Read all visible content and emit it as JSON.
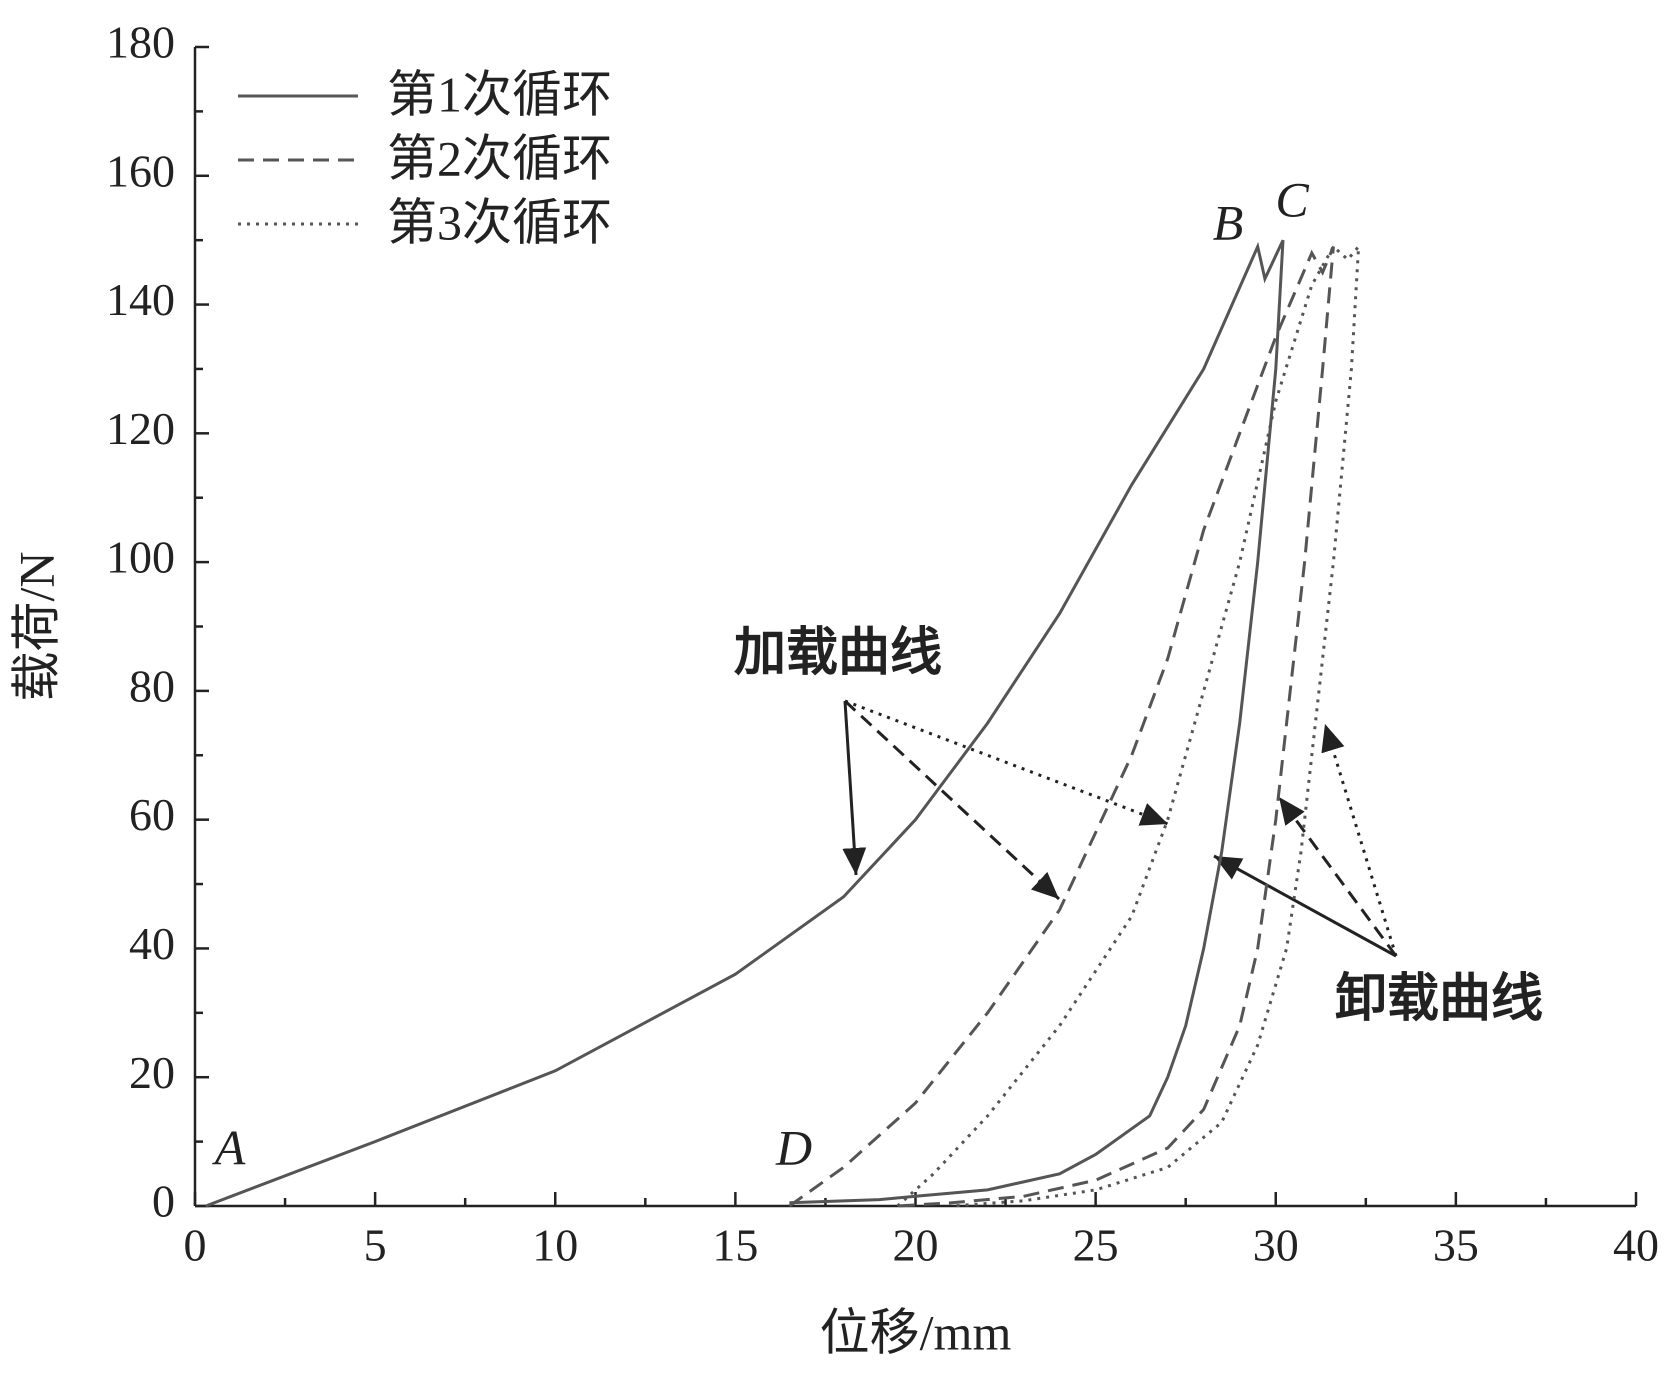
{
  "chart_data": {
    "type": "line",
    "xlabel": "位移/mm",
    "ylabel": "载荷/N",
    "xlim": [
      0,
      40
    ],
    "xticks": [
      0,
      5,
      10,
      15,
      20,
      25,
      30,
      35,
      40
    ],
    "ylim": [
      0,
      180
    ],
    "yticks": [
      0,
      20,
      40,
      60,
      80,
      100,
      120,
      140,
      160,
      180
    ],
    "legend": "upper left",
    "annotations": [
      "A",
      "B",
      "C",
      "D",
      "加载曲线",
      "卸载曲线"
    ],
    "series": [
      {
        "name": "第1次循环",
        "color": "#555555",
        "dash": "solid",
        "x": [
          0.3,
          5,
          10,
          15,
          18,
          20,
          22,
          24,
          26,
          28,
          29.5,
          29.7,
          30.2,
          30,
          29.5,
          29,
          28.5,
          28,
          27.5,
          27,
          26.5,
          25,
          24,
          22,
          20,
          19,
          16.5
        ],
        "values": [
          0,
          10,
          21,
          36,
          48,
          60,
          75,
          92,
          112,
          130,
          149,
          144,
          150,
          130,
          100,
          75,
          55,
          40,
          28,
          20,
          14,
          8,
          5,
          2.5,
          1.5,
          1,
          0.5
        ]
      },
      {
        "name": "第2次循环",
        "color": "#555555",
        "dash": "dashed",
        "x": [
          16.5,
          18,
          20,
          22,
          24,
          26,
          27,
          28,
          29,
          30,
          31,
          31.3,
          31.6,
          31.3,
          30.8,
          30.3,
          30,
          29.5,
          29,
          28,
          27,
          25,
          23,
          21,
          19.5
        ],
        "values": [
          0,
          6,
          16,
          30,
          46,
          70,
          85,
          105,
          120,
          135,
          148,
          145,
          149,
          130,
          100,
          75,
          60,
          40,
          28,
          15,
          9,
          4,
          1.5,
          0.5,
          0
        ]
      },
      {
        "name": "第3次循环",
        "color": "#555555",
        "dash": "dotted",
        "x": [
          19.5,
          20.5,
          22,
          24,
          26,
          27,
          28,
          29,
          30,
          31,
          31.6,
          32,
          32.3,
          32.1,
          31.6,
          31.1,
          30.7,
          30.3,
          29.5,
          28.5,
          27,
          25,
          23,
          21
        ],
        "values": [
          0,
          5,
          14,
          28,
          45,
          60,
          80,
          100,
          125,
          143,
          149,
          147,
          149,
          130,
          100,
          75,
          55,
          40,
          25,
          13,
          6,
          2.5,
          0.8,
          0
        ]
      }
    ]
  }
}
